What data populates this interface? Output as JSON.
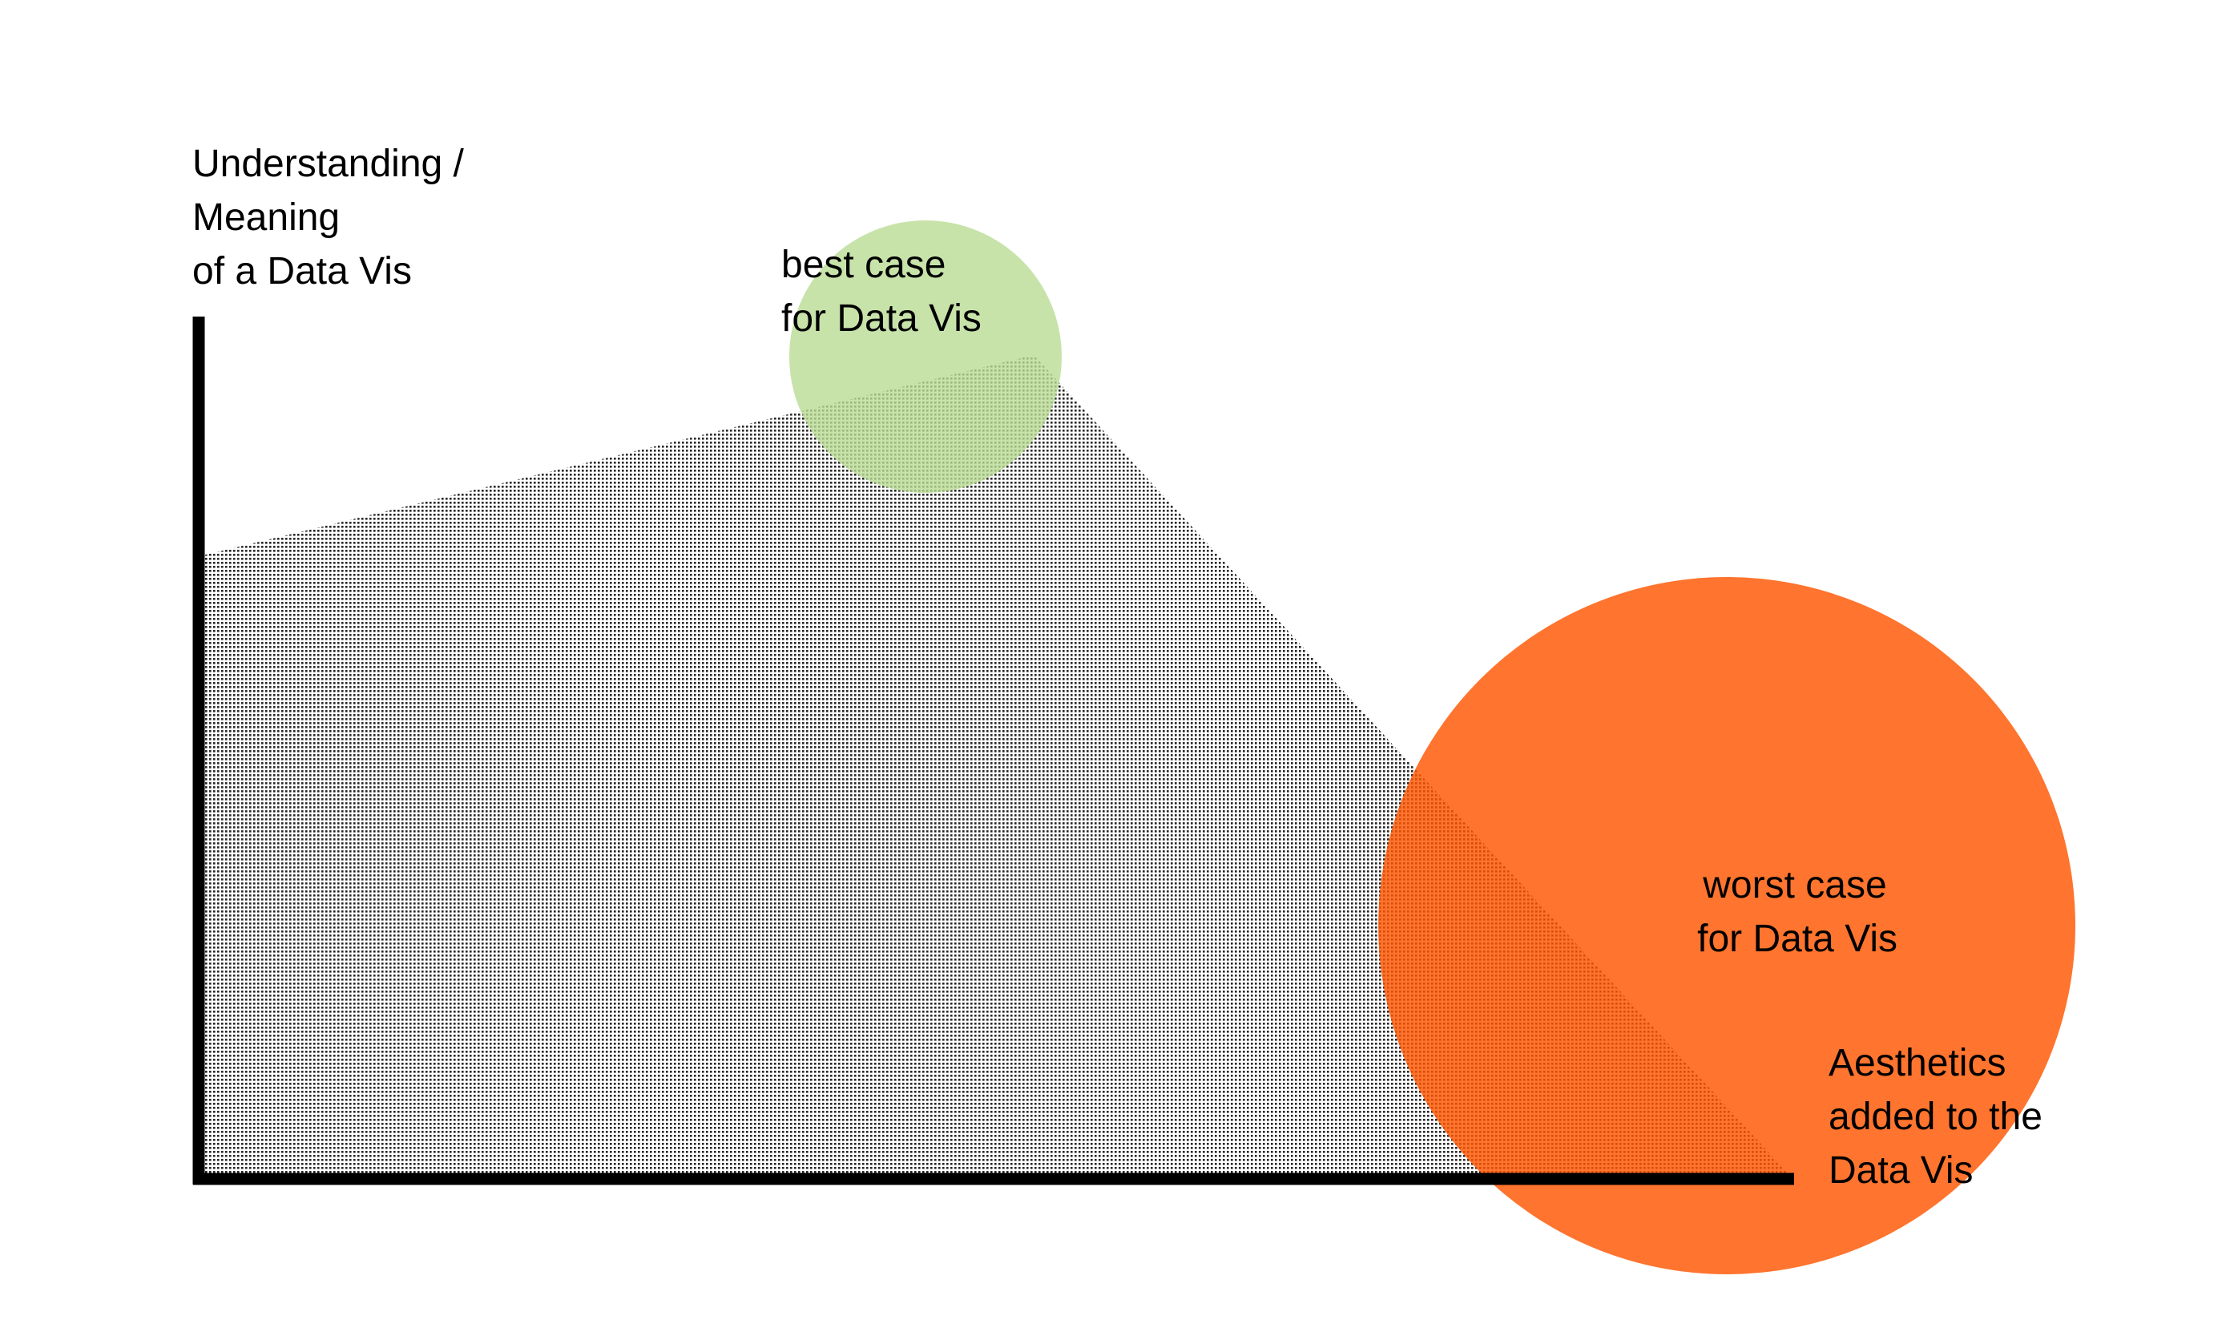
{
  "colors": {
    "background": "#ffffff",
    "axis": "#000000",
    "area_dots": "#000000",
    "best_case_circle": "#b9dc94",
    "worst_case_circle": "#ff5600"
  },
  "labels": {
    "y_axis": [
      "Understanding /",
      "Meaning",
      "of a Data Vis"
    ],
    "x_axis": [
      "Aesthetics",
      "added to the",
      "Data Vis"
    ],
    "best_case": [
      "best case",
      "for Data Vis"
    ],
    "worst_case": [
      "worst case",
      "for Data Vis"
    ]
  }
}
